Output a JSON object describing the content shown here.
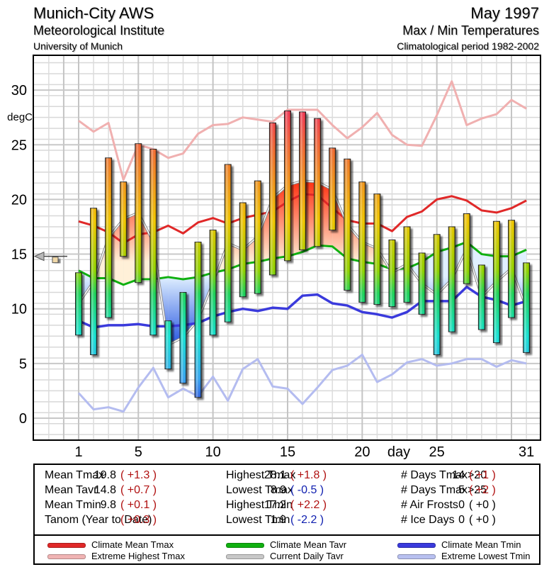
{
  "header": {
    "station": "Munich-City AWS",
    "institute": "Meteorological Institute",
    "university": "University of Munich",
    "month": "May 1997",
    "chart_title": "Max / Min Temperatures",
    "period": "Climatological period 1982-2002"
  },
  "chart_data": {
    "type": "bar",
    "title": "Max / Min Temperatures",
    "subtitle": "May 1997",
    "xlabel": "day",
    "ylabel": "degC",
    "ylim": [
      -2,
      33
    ],
    "xlim": [
      0,
      32
    ],
    "grid": true,
    "yticks": [
      0,
      5,
      10,
      15,
      20,
      25,
      30
    ],
    "xticks": [
      1,
      5,
      10,
      15,
      20,
      25,
      31
    ],
    "days": [
      1,
      2,
      3,
      4,
      5,
      6,
      7,
      8,
      9,
      10,
      11,
      12,
      13,
      14,
      15,
      16,
      17,
      18,
      19,
      20,
      21,
      22,
      23,
      24,
      25,
      26,
      27,
      28,
      29,
      30,
      31
    ],
    "daily_tmax": [
      13.3,
      19.2,
      23.8,
      21.6,
      25.1,
      24.6,
      8.9,
      11.5,
      16.1,
      17.2,
      23.2,
      19.7,
      21.7,
      27.0,
      28.1,
      28.0,
      27.4,
      24.7,
      23.7,
      21.6,
      20.5,
      16.3,
      17.5,
      15.1,
      16.8,
      17.5,
      18.7,
      14.0,
      18.0,
      18.1,
      14.2
    ],
    "daily_tmin": [
      7.6,
      5.8,
      9.2,
      14.8,
      12.4,
      7.6,
      4.5,
      3.2,
      1.9,
      7.6,
      8.8,
      11.1,
      11.4,
      13.1,
      14.4,
      15.4,
      15.7,
      17.2,
      11.7,
      10.6,
      10.4,
      10.2,
      10.6,
      9.5,
      5.8,
      7.9,
      12.3,
      8.1,
      6.9,
      9.2,
      6.0
    ],
    "series": [
      {
        "name": "Climate Mean Tmax",
        "color": "#e02828",
        "values": [
          18.0,
          17.6,
          17.0,
          16.0,
          16.8,
          17.0,
          17.6,
          16.9,
          17.9,
          18.3,
          17.8,
          18.3,
          18.6,
          18.9,
          19.8,
          20.5,
          20.4,
          19.2,
          18.1,
          17.8,
          17.8,
          17.1,
          18.4,
          18.9,
          20.0,
          20.3,
          19.9,
          19.0,
          18.8,
          19.2,
          19.9
        ]
      },
      {
        "name": "Extreme Highest Tmax",
        "color": "#f0aaaa",
        "values": [
          27.2,
          26.2,
          27.0,
          21.8,
          25.0,
          24.6,
          23.8,
          24.2,
          26.0,
          26.8,
          26.9,
          27.5,
          27.3,
          27.1,
          28.2,
          28.2,
          28.2,
          26.8,
          25.6,
          26.6,
          27.9,
          25.9,
          25.0,
          24.9,
          27.7,
          30.8,
          26.8,
          27.4,
          27.8,
          29.1,
          28.3
        ]
      },
      {
        "name": "Climate Mean Tavr",
        "color": "#10b010",
        "values": [
          13.5,
          12.8,
          12.8,
          12.2,
          12.7,
          12.7,
          12.9,
          12.7,
          12.9,
          13.3,
          13.6,
          14.1,
          14.3,
          14.6,
          14.8,
          15.2,
          15.8,
          15.7,
          14.6,
          14.3,
          14.1,
          13.6,
          13.7,
          14.3,
          15.2,
          15.6,
          16.1,
          15.0,
          14.8,
          14.8,
          15.4
        ]
      },
      {
        "name": "Current Daily Tavr",
        "color": "#999999",
        "values": [
          10.5,
          12.5,
          16.5,
          18.2,
          18.8,
          16.1,
          6.7,
          7.4,
          9.0,
          12.4,
          16.0,
          15.4,
          16.6,
          20.1,
          21.3,
          21.7,
          21.6,
          20.9,
          17.7,
          16.1,
          15.5,
          13.3,
          14.1,
          12.3,
          11.3,
          12.7,
          15.5,
          11.1,
          12.5,
          13.7,
          10.1
        ]
      },
      {
        "name": "Climate Mean Tmin",
        "color": "#3a3adc",
        "values": [
          8.9,
          8.3,
          8.5,
          8.5,
          8.6,
          8.4,
          8.4,
          8.5,
          8.7,
          9.3,
          9.7,
          10.0,
          9.8,
          10.1,
          10.0,
          11.2,
          11.3,
          10.5,
          10.3,
          9.7,
          9.5,
          9.2,
          9.7,
          10.7,
          10.7,
          10.7,
          12.0,
          11.1,
          10.8,
          10.3,
          10.7
        ]
      },
      {
        "name": "Extreme Lowest Tmin",
        "color": "#b0b8f0",
        "values": [
          2.3,
          0.8,
          1.0,
          0.6,
          2.8,
          4.6,
          1.9,
          2.7,
          2.0,
          3.8,
          1.6,
          4.5,
          5.4,
          2.9,
          2.7,
          1.3,
          2.8,
          4.4,
          4.8,
          5.8,
          3.3,
          4.0,
          5.1,
          5.4,
          4.8,
          5.0,
          5.4,
          5.4,
          4.7,
          5.3,
          5.0
        ]
      }
    ],
    "month_mean_marker": {
      "value": 14.8,
      "label": "Mean Tavr"
    }
  },
  "stats": {
    "col1": [
      {
        "label": "Mean Tmax",
        "value": "19.8",
        "dev": "( +1.3 )",
        "sign": "pos"
      },
      {
        "label": "Mean Tavr",
        "value": "14.8",
        "dev": "( +0.7 )",
        "sign": "pos"
      },
      {
        "label": "Mean Tmin",
        "value": "9.8",
        "dev": "( +0.1 )",
        "sign": "pos"
      },
      {
        "label": "Tanom (Year to Date)",
        "value": "",
        "dev": "( +0.3 )",
        "sign": "pos"
      }
    ],
    "col2": [
      {
        "label": "Highest Tmax",
        "value": "28.1",
        "dev": "( +1.8 )",
        "sign": "pos"
      },
      {
        "label": "Lowest Tmax",
        "value": "8.9",
        "dev": "( -0.5 )",
        "sign": "neg"
      },
      {
        "label": "Highest Tmin",
        "value": "17.2",
        "dev": "( +2.2 )",
        "sign": "pos"
      },
      {
        "label": "Lowest Tmin",
        "value": "1.9",
        "dev": "( -2.2 )",
        "sign": "neg"
      }
    ],
    "col3": [
      {
        "label": "# Days Tmax>20",
        "value": "14",
        "dev": "( +1 )",
        "sign": "pos"
      },
      {
        "label": "# Days Tmax>25",
        "value": "5",
        "dev": "( +2 )",
        "sign": "pos"
      },
      {
        "label": "# Air Frosts",
        "value": "0",
        "dev": "( +0 )",
        "sign": "neu"
      },
      {
        "label": "# Ice Days",
        "value": "0",
        "dev": "( +0 )",
        "sign": "neu"
      }
    ]
  },
  "legend": [
    {
      "label": "Climate Mean Tmax",
      "color": "#e02828"
    },
    {
      "label": "Extreme Highest Tmax",
      "color": "#f0b4b4"
    },
    {
      "label": "Climate Mean Tavr",
      "color": "#10b010"
    },
    {
      "label": "Current Daily Tavr",
      "color": "#c8c8c8"
    },
    {
      "label": "Climate Mean Tmin",
      "color": "#3a3adc"
    },
    {
      "label": "Extreme Lowest Tmin",
      "color": "#b8c0f0"
    }
  ]
}
